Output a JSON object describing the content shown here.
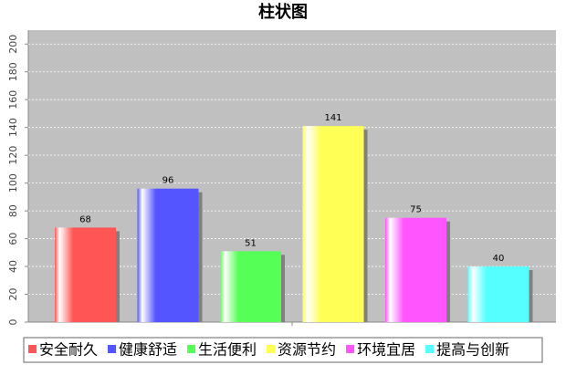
{
  "chart_data": {
    "type": "bar",
    "title": "柱状图",
    "categories": [
      "安全耐久",
      "健康舒适",
      "生活便利",
      "资源节约",
      "环境宜居",
      "提高与创新"
    ],
    "values": [
      68,
      96,
      51,
      141,
      75,
      40
    ],
    "colors": [
      "#ff5555",
      "#5555ff",
      "#55ff55",
      "#ffff55",
      "#ff55ff",
      "#55ffff"
    ],
    "ylim": [
      0,
      210
    ],
    "yticks": [
      0,
      20,
      40,
      60,
      80,
      100,
      120,
      140,
      160,
      180,
      200
    ],
    "grid": true,
    "legend": "bottom"
  }
}
